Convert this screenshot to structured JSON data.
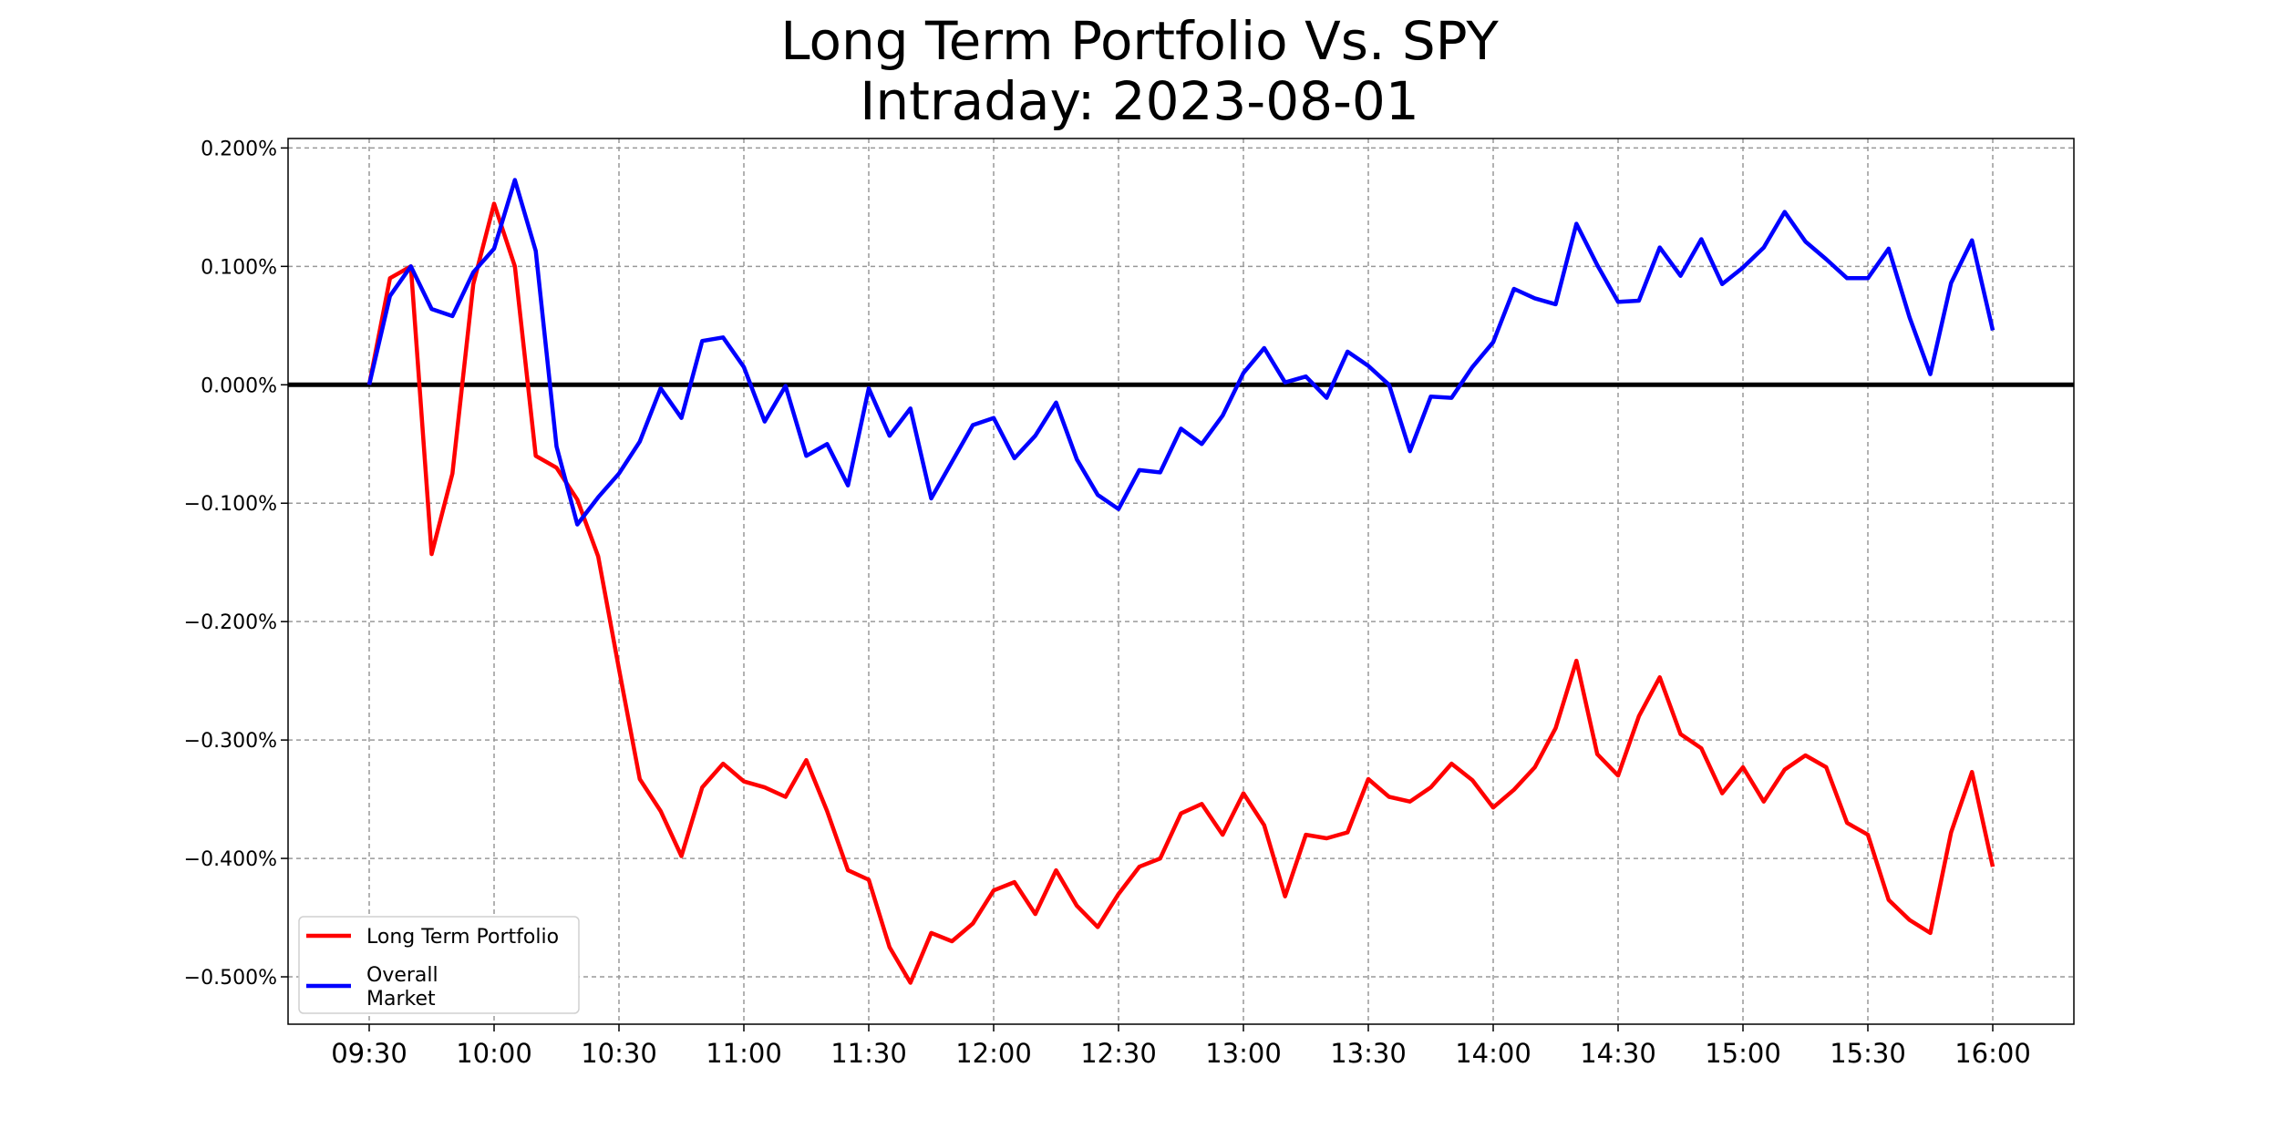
{
  "chart_data": {
    "type": "line",
    "title": "Long Term Portfolio Vs. SPY",
    "subtitle": "Intraday: 2023-08-01",
    "xlabel": "",
    "ylabel": "",
    "ylim": [
      -0.54,
      0.208
    ],
    "grid": true,
    "legend_position": "bottom-left",
    "y_ticks": [
      0.2,
      0.1,
      0.0,
      -0.1,
      -0.2,
      -0.3,
      -0.4,
      -0.5
    ],
    "y_tick_labels": [
      "0.200%",
      "0.100%",
      "0.000%",
      "−0.100%",
      "−0.200%",
      "−0.300%",
      "−0.400%",
      "−0.500%"
    ],
    "x_tick_labels": [
      "09:30",
      "10:00",
      "10:30",
      "11:00",
      "11:30",
      "12:00",
      "12:30",
      "13:00",
      "13:30",
      "14:00",
      "14:30",
      "15:00",
      "15:30",
      "16:00"
    ],
    "x_interval_minutes": 5,
    "series": [
      {
        "name": "Long Term Portfolio",
        "color": "#ff0000",
        "values": [
          0.0,
          0.09,
          0.1,
          -0.143,
          -0.075,
          0.085,
          0.153,
          0.1,
          -0.06,
          -0.07,
          -0.097,
          -0.145,
          -0.24,
          -0.333,
          -0.36,
          -0.398,
          -0.34,
          -0.32,
          -0.335,
          -0.34,
          -0.348,
          -0.317,
          -0.36,
          -0.41,
          -0.418,
          -0.475,
          -0.505,
          -0.463,
          -0.47,
          -0.455,
          -0.427,
          -0.42,
          -0.447,
          -0.41,
          -0.44,
          -0.458,
          -0.43,
          -0.407,
          -0.4,
          -0.362,
          -0.354,
          -0.38,
          -0.345,
          -0.372,
          -0.432,
          -0.38,
          -0.383,
          -0.378,
          -0.333,
          -0.348,
          -0.352,
          -0.34,
          -0.32,
          -0.334,
          -0.357,
          -0.342,
          -0.323,
          -0.29,
          -0.233,
          -0.312,
          -0.33,
          -0.28,
          -0.247,
          -0.295,
          -0.307,
          -0.345,
          -0.323,
          -0.352,
          -0.325,
          -0.313,
          -0.323,
          -0.37,
          -0.38,
          -0.435,
          -0.452,
          -0.463,
          -0.378,
          -0.327,
          -0.407
        ]
      },
      {
        "name": "Overall\nMarket",
        "color": "#0000ff",
        "values": [
          0.0,
          0.075,
          0.1,
          0.064,
          0.058,
          0.095,
          0.115,
          0.173,
          0.113,
          -0.052,
          -0.118,
          -0.095,
          -0.075,
          -0.048,
          -0.003,
          -0.028,
          0.037,
          0.04,
          0.015,
          -0.031,
          -0.001,
          -0.06,
          -0.05,
          -0.085,
          -0.003,
          -0.043,
          -0.02,
          -0.096,
          -0.065,
          -0.034,
          -0.028,
          -0.062,
          -0.043,
          -0.015,
          -0.063,
          -0.093,
          -0.105,
          -0.072,
          -0.074,
          -0.037,
          -0.05,
          -0.026,
          0.01,
          0.031,
          0.002,
          0.007,
          -0.011,
          0.028,
          0.016,
          0.0,
          -0.056,
          -0.01,
          -0.011,
          0.015,
          0.036,
          0.081,
          0.073,
          0.068,
          0.136,
          0.101,
          0.07,
          0.071,
          0.116,
          0.092,
          0.123,
          0.085,
          0.099,
          0.116,
          0.146,
          0.121,
          0.106,
          0.09,
          0.09,
          0.115,
          0.057,
          0.009,
          0.086,
          0.122,
          0.046
        ]
      }
    ]
  }
}
